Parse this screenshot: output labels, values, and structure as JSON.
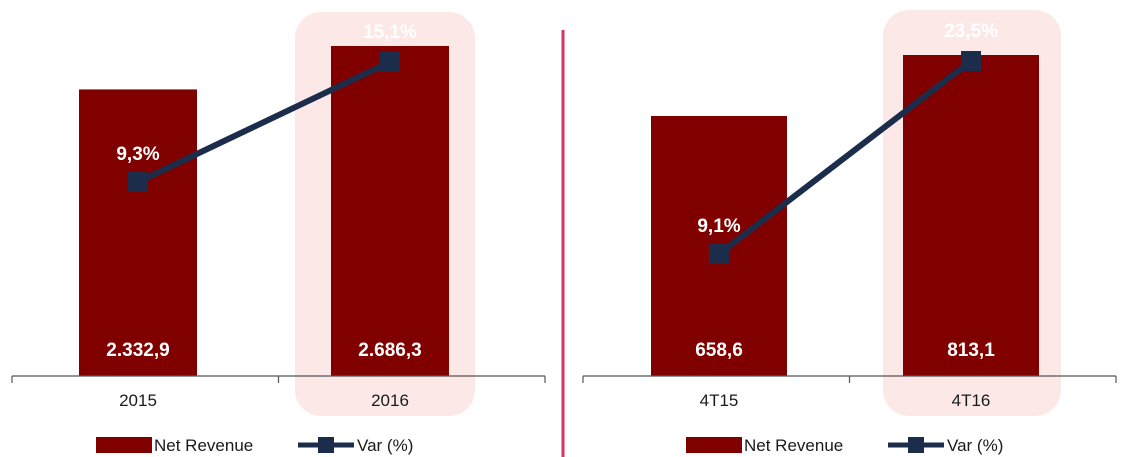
{
  "colors": {
    "bar": "#800000",
    "line": "#1b2d4a",
    "highlight": "#fde8e8",
    "divider": "#d6336c",
    "axis": "#555555"
  },
  "legend": {
    "bar_label": "Net Revenue",
    "line_label": "Var (%)"
  },
  "chart_data": [
    {
      "type": "bar",
      "categories": [
        "2015",
        "2016"
      ],
      "series": [
        {
          "name": "Net Revenue",
          "values": [
            2332.9,
            2686.3
          ],
          "labels": [
            "2.332,9",
            "2.686,3"
          ]
        },
        {
          "name": "Var (%)",
          "values": [
            9.3,
            15.1
          ],
          "labels": [
            "9,3%",
            "15,1%"
          ]
        }
      ],
      "highlight_category": "2016"
    },
    {
      "type": "bar",
      "categories": [
        "4T15",
        "4T16"
      ],
      "series": [
        {
          "name": "Net Revenue",
          "values": [
            658.6,
            813.1
          ],
          "labels": [
            "658,6",
            "813,1"
          ]
        },
        {
          "name": "Var (%)",
          "values": [
            9.1,
            23.5
          ],
          "labels": [
            "9,1%",
            "23,5%"
          ]
        }
      ],
      "highlight_category": "4T16"
    }
  ]
}
